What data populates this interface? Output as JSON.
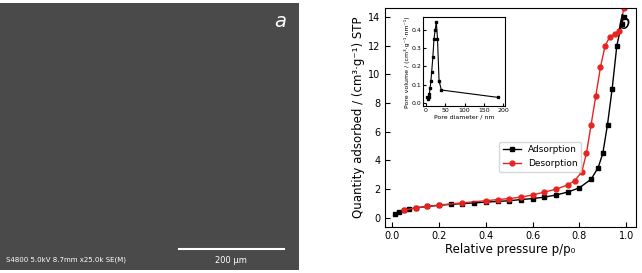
{
  "image_panel": {
    "label": "a",
    "info": "S4800 5.0kV 8.7mm x25.0k SE(M)",
    "scale_bar": "200 μm"
  },
  "chart_data": [
    {
      "type": "line",
      "panel_label": "b",
      "x_label": "Relative pressure p/p₀",
      "y_label": "Quantity adsorbed / (cm³·g⁻¹) STP",
      "xlim": [
        -0.03,
        1.04
      ],
      "xticks": [
        {
          "value": 0.0,
          "label": "0.0"
        },
        {
          "value": 0.2,
          "label": "0.2"
        },
        {
          "value": 0.4,
          "label": "0.4"
        },
        {
          "value": 0.6,
          "label": "0.6"
        },
        {
          "value": 0.8,
          "label": "0.8"
        },
        {
          "value": 1.0,
          "label": "1.0"
        }
      ],
      "ylim": [
        -0.6,
        14.6
      ],
      "yticks": [
        0,
        2,
        4,
        6,
        8,
        10,
        12,
        14
      ],
      "legend": "center",
      "series": [
        {
          "name": "Adsorption",
          "color": "#000000",
          "marker": "square",
          "line_style": "solid",
          "x": [
            0.01,
            0.03,
            0.05,
            0.07,
            0.1,
            0.15,
            0.2,
            0.25,
            0.3,
            0.35,
            0.4,
            0.45,
            0.5,
            0.55,
            0.6,
            0.65,
            0.7,
            0.75,
            0.8,
            0.85,
            0.88,
            0.9,
            0.92,
            0.94,
            0.96,
            0.98,
            0.99
          ],
          "values": [
            0.3,
            0.45,
            0.55,
            0.6,
            0.7,
            0.8,
            0.88,
            0.95,
            1.0,
            1.05,
            1.1,
            1.15,
            1.2,
            1.28,
            1.35,
            1.45,
            1.6,
            1.8,
            2.1,
            2.7,
            3.5,
            4.5,
            6.5,
            9.0,
            12.0,
            13.5,
            14.0
          ]
        },
        {
          "name": "Desorption",
          "color": "#e8231f",
          "marker": "circle",
          "line_style": "solid",
          "x": [
            0.99,
            0.97,
            0.95,
            0.93,
            0.91,
            0.89,
            0.87,
            0.85,
            0.83,
            0.81,
            0.78,
            0.75,
            0.7,
            0.65,
            0.6,
            0.55,
            0.5,
            0.45,
            0.4,
            0.3,
            0.2,
            0.15,
            0.1,
            0.05
          ],
          "values": [
            14.6,
            13.0,
            12.8,
            12.6,
            12.0,
            10.5,
            8.5,
            6.5,
            4.5,
            3.2,
            2.6,
            2.3,
            2.0,
            1.8,
            1.6,
            1.45,
            1.35,
            1.28,
            1.2,
            1.05,
            0.9,
            0.8,
            0.7,
            0.55
          ]
        }
      ]
    },
    {
      "type": "line",
      "x_label": "Pore diameter / nm",
      "y_label": "Pore volume / (cm³·g⁻¹·nm⁻¹)",
      "xlim": [
        -8,
        205
      ],
      "xticks": [
        0,
        50,
        100,
        150,
        200
      ],
      "ylim": [
        -0.02,
        0.47
      ],
      "yticks": [
        {
          "value": 0.0,
          "label": "0.0"
        },
        {
          "value": 0.1,
          "label": "0.1"
        },
        {
          "value": 0.2,
          "label": "0.2"
        },
        {
          "value": 0.3,
          "label": "0.3"
        },
        {
          "value": 0.4,
          "label": "0.4"
        }
      ],
      "color": "#000000",
      "marker": "square",
      "line_style": "solid",
      "x": [
        3,
        5,
        7,
        9,
        11,
        13,
        15,
        18,
        21,
        24,
        27,
        30,
        34,
        40,
        185
      ],
      "values": [
        0.03,
        0.02,
        0.03,
        0.05,
        0.08,
        0.12,
        0.17,
        0.25,
        0.35,
        0.4,
        0.44,
        0.35,
        0.12,
        0.07,
        0.03
      ]
    }
  ]
}
